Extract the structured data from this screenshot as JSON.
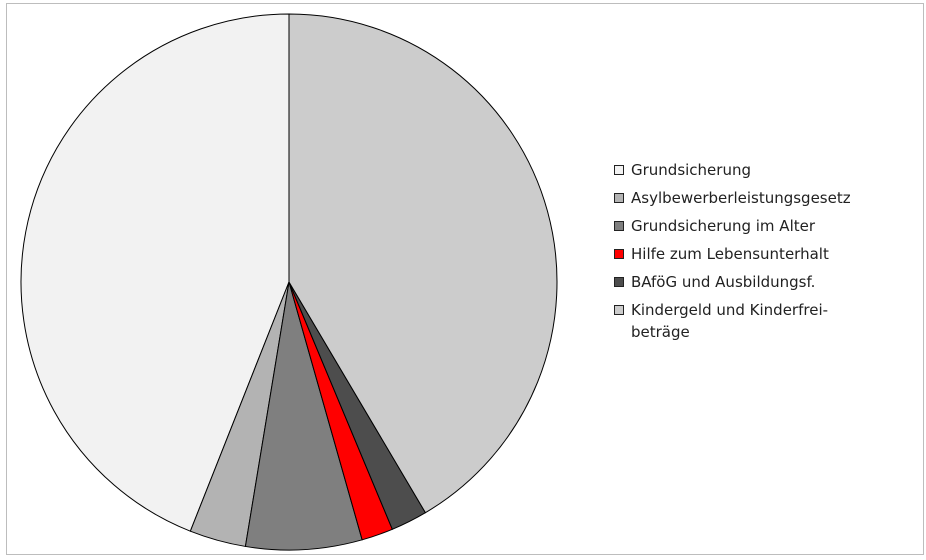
{
  "chart_data": {
    "type": "pie",
    "title": "",
    "legend_position": "right",
    "slices": [
      {
        "label": "Grundsicherung",
        "value": 44.0,
        "color": "#f2f2f2"
      },
      {
        "label": "Asylbewerberleistungsgesetz",
        "value": 3.4,
        "color": "#b3b3b3"
      },
      {
        "label": "Grundsicherung im Alter",
        "value": 7.0,
        "color": "#7f7f7f"
      },
      {
        "label": "Hilfe zum Lebensunterhalt",
        "value": 1.9,
        "color": "#ff0000"
      },
      {
        "label": "BAföG und Ausbildungsf.",
        "value": 2.2,
        "color": "#4d4d4d"
      },
      {
        "label": "Kindergeld und Kinderfrei-\nbeträge",
        "value": 41.5,
        "color": "#cccccc"
      }
    ]
  }
}
